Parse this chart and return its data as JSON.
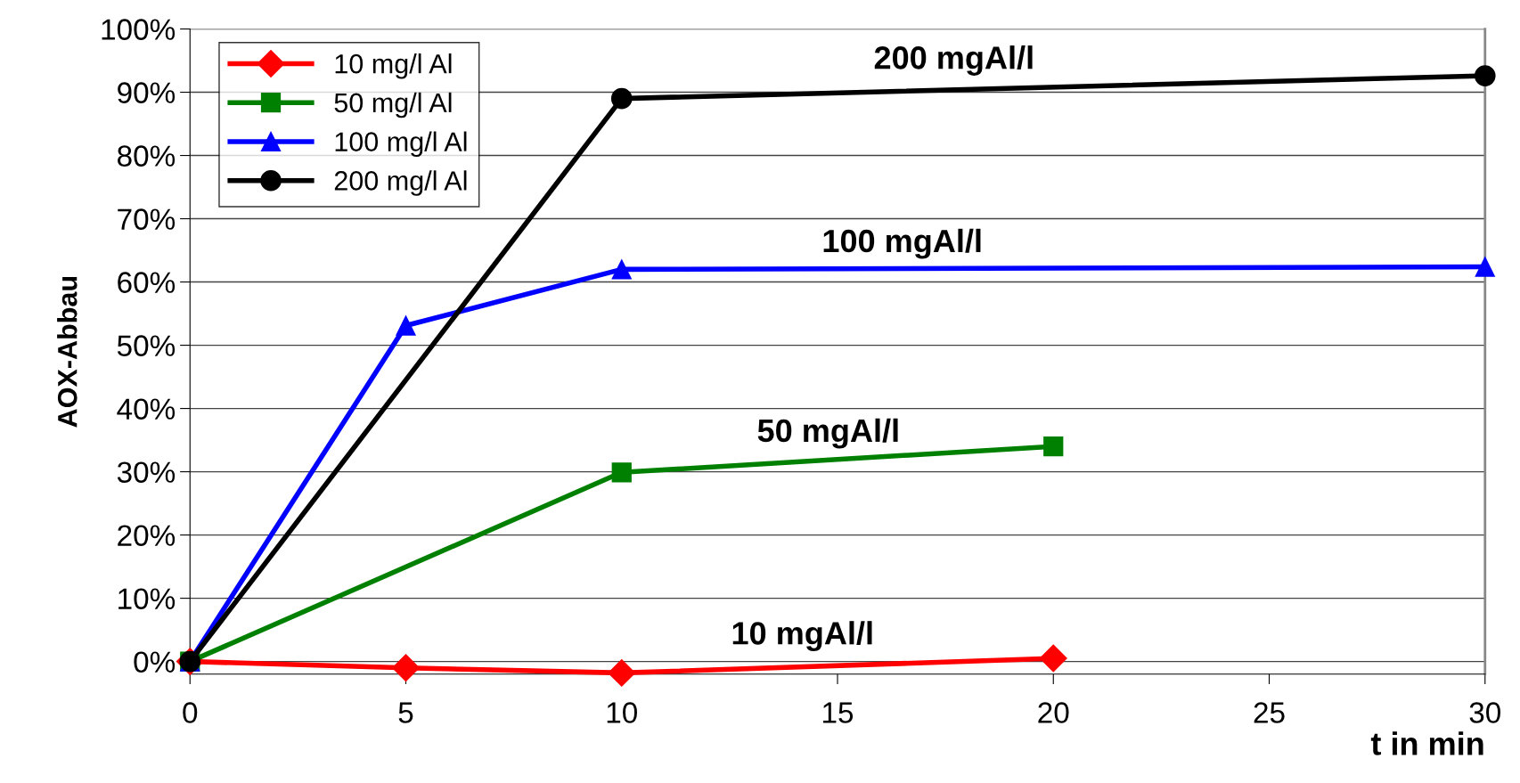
{
  "chart_data": {
    "type": "line",
    "xlabel": "t in min",
    "ylabel": "AOX-Abbau",
    "series": [
      {
        "name": "10 mg/l Al",
        "color": "#ff0000",
        "marker": "diamond",
        "x": [
          0,
          5,
          10,
          20
        ],
        "values": [
          0,
          -1,
          -1.8,
          0.5
        ]
      },
      {
        "name": "50 mg/l Al",
        "color": "#008000",
        "marker": "square",
        "x": [
          0,
          10,
          20
        ],
        "values": [
          0,
          29.9,
          34.0
        ]
      },
      {
        "name": "100 mg/l Al",
        "color": "#0000ff",
        "marker": "triangle",
        "x": [
          0,
          5,
          10,
          30
        ],
        "values": [
          0,
          53.1,
          62.0,
          62.4
        ]
      },
      {
        "name": "200 mg/l Al",
        "color": "#000000",
        "marker": "circle",
        "x": [
          0,
          10,
          30
        ],
        "values": [
          0,
          89.0,
          92.6
        ]
      }
    ],
    "annotations": [
      "200 mgAl/l",
      "100 mgAl/l",
      "50 mgAl/l",
      "10 mgAl/l"
    ],
    "xlim": [
      0,
      30
    ],
    "xticks": [
      0,
      5,
      10,
      15,
      20,
      25,
      30
    ],
    "ylim": [
      -2,
      100
    ],
    "yticks": [
      {
        "value": 0,
        "label": "0%"
      },
      {
        "value": 10,
        "label": "10%"
      },
      {
        "value": 20,
        "label": "20%"
      },
      {
        "value": 30,
        "label": "30%"
      },
      {
        "value": 40,
        "label": "40%"
      },
      {
        "value": 50,
        "label": "50%"
      },
      {
        "value": 60,
        "label": "60%"
      },
      {
        "value": 70,
        "label": "70%"
      },
      {
        "value": 80,
        "label": "80%"
      },
      {
        "value": 90,
        "label": "90%"
      },
      {
        "value": 100,
        "label": "100%"
      }
    ],
    "grid": "y",
    "legend": "top left",
    "line_style": "solid"
  }
}
